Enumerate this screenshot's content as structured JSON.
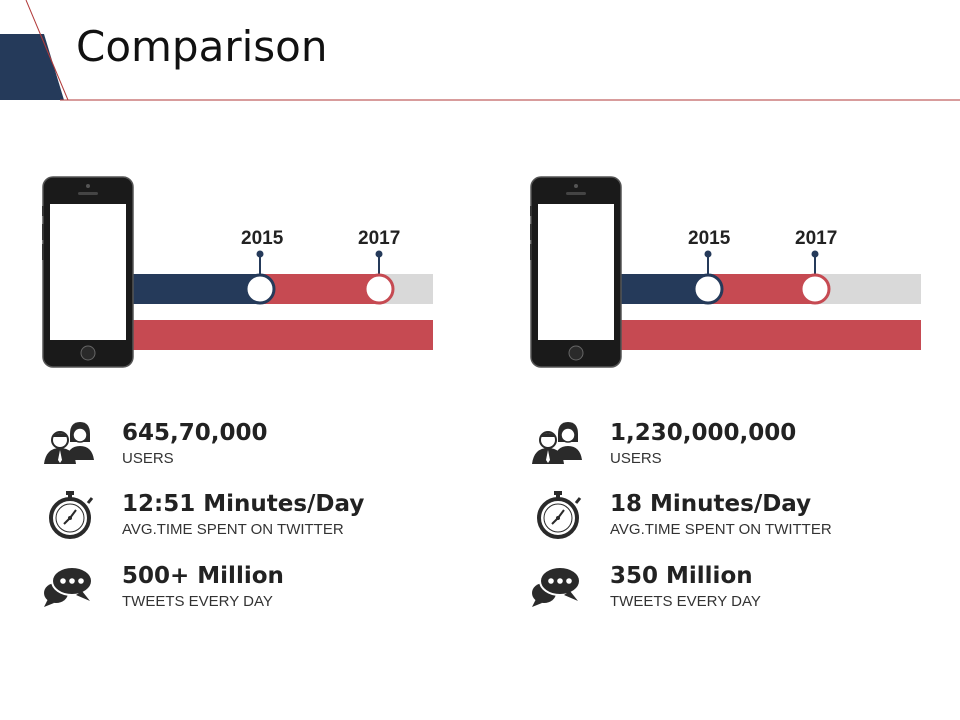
{
  "title": "Comparison",
  "colors": {
    "navy": "#253a5a",
    "red": "#c64a52",
    "gray": "#d9d9d9",
    "text": "#222222"
  },
  "panels": [
    {
      "timeline": {
        "year_a": "2015",
        "year_b": "2017"
      },
      "stats": [
        {
          "icon": "users-icon",
          "value": "645,70,000",
          "label": "USERS"
        },
        {
          "icon": "stopwatch-icon",
          "value": "12:51 Minutes/Day",
          "label": "AVG.TIME  SPENT ON TWITTER"
        },
        {
          "icon": "chat-bubbles-icon",
          "value": "500+ Million",
          "label": "TWEETS EVERY DAY"
        }
      ]
    },
    {
      "timeline": {
        "year_a": "2015",
        "year_b": "2017"
      },
      "stats": [
        {
          "icon": "users-icon",
          "value": "1,230,000,000",
          "label": "USERS"
        },
        {
          "icon": "stopwatch-icon",
          "value": "18 Minutes/Day",
          "label": "AVG.TIME  SPENT ON TWITTER"
        },
        {
          "icon": "chat-bubbles-icon",
          "value": "350 Million",
          "label": "TWEETS EVERY DAY"
        }
      ]
    }
  ]
}
